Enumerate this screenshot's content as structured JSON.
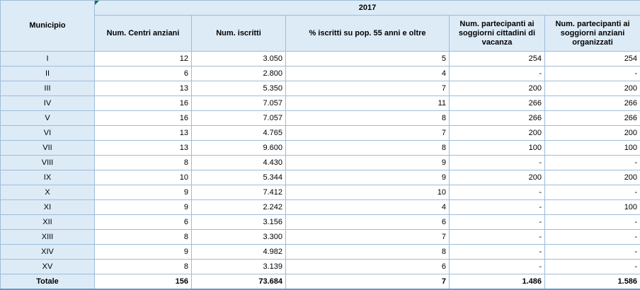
{
  "header": {
    "municipio": "Municipio",
    "year": "2017",
    "columns": [
      "Num. Centri anziani",
      "Num. iscritti",
      "% iscritti su pop. 55 anni e oltre",
      "Num. partecipanti ai soggiorni cittadini di vacanza",
      "Num. partecipanti ai soggiorni anziani organizzati"
    ]
  },
  "rows": [
    {
      "municipio": "I",
      "values": [
        "12",
        "3.050",
        "5",
        "254",
        "254"
      ]
    },
    {
      "municipio": "II",
      "values": [
        "6",
        "2.800",
        "4",
        "-",
        "-"
      ]
    },
    {
      "municipio": "III",
      "values": [
        "13",
        "5.350",
        "7",
        "200",
        "200"
      ]
    },
    {
      "municipio": "IV",
      "values": [
        "16",
        "7.057",
        "11",
        "266",
        "266"
      ]
    },
    {
      "municipio": "V",
      "values": [
        "16",
        "7.057",
        "8",
        "266",
        "266"
      ]
    },
    {
      "municipio": "VI",
      "values": [
        "13",
        "4.765",
        "7",
        "200",
        "200"
      ]
    },
    {
      "municipio": "VII",
      "values": [
        "13",
        "9.600",
        "8",
        "100",
        "100"
      ]
    },
    {
      "municipio": "VIII",
      "values": [
        "8",
        "4.430",
        "9",
        "-",
        "-"
      ]
    },
    {
      "municipio": "IX",
      "values": [
        "10",
        "5.344",
        "9",
        "200",
        "200"
      ]
    },
    {
      "municipio": "X",
      "values": [
        "9",
        "7.412",
        "10",
        "-",
        "-"
      ]
    },
    {
      "municipio": "XI",
      "values": [
        "9",
        "2.242",
        "4",
        "-",
        "100"
      ]
    },
    {
      "municipio": "XII",
      "values": [
        "6",
        "3.156",
        "6",
        "-",
        "-"
      ]
    },
    {
      "municipio": "XIII",
      "values": [
        "8",
        "3.300",
        "7",
        "-",
        "-"
      ]
    },
    {
      "municipio": "XIV",
      "values": [
        "9",
        "4.982",
        "8",
        "-",
        "-"
      ]
    },
    {
      "municipio": "XV",
      "values": [
        "8",
        "3.139",
        "6",
        "-",
        "-"
      ]
    }
  ],
  "total": {
    "label": "Totale",
    "values": [
      "156",
      "73.684",
      "7",
      "1.486",
      "1.586"
    ]
  },
  "colors": {
    "header_bg": "#ddebf7",
    "border": "#9dbcd9",
    "selection_mark": "#1e7145"
  }
}
